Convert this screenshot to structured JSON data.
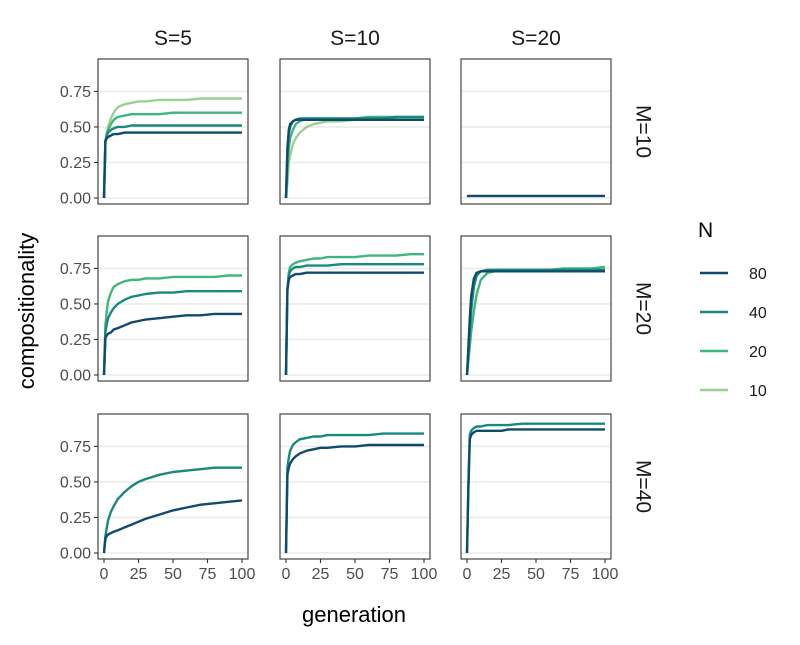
{
  "chart_data": {
    "type": "line",
    "layout": "facet_grid",
    "xlabel": "generation",
    "ylabel": "compositionality",
    "xlim": [
      0,
      100
    ],
    "ylim": [
      0,
      0.95
    ],
    "x_ticks": [
      "0",
      "25",
      "50",
      "75",
      "100"
    ],
    "y_ticks": [
      "0.00",
      "0.25",
      "0.50",
      "0.75"
    ],
    "grid": true,
    "column_labels": [
      "S=5",
      "S=10",
      "S=20"
    ],
    "row_labels": [
      "M=10",
      "M=20",
      "M=40"
    ],
    "legend": {
      "title": "N",
      "position": "right",
      "entries": [
        {
          "label": "80",
          "color": "#0f4c6b"
        },
        {
          "label": "40",
          "color": "#188a7c"
        },
        {
          "label": "20",
          "color": "#3fb57f"
        },
        {
          "label": "10",
          "color": "#97d28e"
        }
      ]
    },
    "x": [
      0,
      1,
      2,
      3,
      5,
      7,
      10,
      15,
      20,
      25,
      30,
      40,
      50,
      60,
      70,
      80,
      90,
      100
    ],
    "panels": [
      {
        "row": "M=10",
        "col": "S=5",
        "series": [
          {
            "N": "10",
            "values": [
              0.0,
              0.4,
              0.46,
              0.5,
              0.56,
              0.6,
              0.64,
              0.66,
              0.67,
              0.68,
              0.68,
              0.69,
              0.69,
              0.69,
              0.7,
              0.7,
              0.7,
              0.7
            ]
          },
          {
            "N": "20",
            "values": [
              0.0,
              0.4,
              0.45,
              0.48,
              0.52,
              0.55,
              0.57,
              0.58,
              0.59,
              0.59,
              0.59,
              0.59,
              0.6,
              0.6,
              0.6,
              0.6,
              0.6,
              0.6
            ]
          },
          {
            "N": "40",
            "values": [
              0.0,
              0.4,
              0.44,
              0.46,
              0.48,
              0.49,
              0.5,
              0.5,
              0.51,
              0.51,
              0.51,
              0.51,
              0.51,
              0.51,
              0.51,
              0.51,
              0.51,
              0.51
            ]
          },
          {
            "N": "80",
            "values": [
              0.0,
              0.4,
              0.42,
              0.43,
              0.44,
              0.45,
              0.45,
              0.46,
              0.46,
              0.46,
              0.46,
              0.46,
              0.46,
              0.46,
              0.46,
              0.46,
              0.46,
              0.46
            ]
          }
        ]
      },
      {
        "row": "M=10",
        "col": "S=10",
        "series": [
          {
            "N": "10",
            "values": [
              0.0,
              0.1,
              0.25,
              0.3,
              0.38,
              0.42,
              0.46,
              0.5,
              0.52,
              0.53,
              0.54,
              0.54,
              0.55,
              0.55,
              0.55,
              0.55,
              0.55,
              0.55
            ]
          },
          {
            "N": "20",
            "values": [
              0.0,
              0.2,
              0.35,
              0.42,
              0.48,
              0.52,
              0.54,
              0.56,
              0.56,
              0.56,
              0.56,
              0.56,
              0.56,
              0.57,
              0.57,
              0.57,
              0.57,
              0.57
            ]
          },
          {
            "N": "40",
            "values": [
              0.0,
              0.3,
              0.45,
              0.5,
              0.54,
              0.55,
              0.56,
              0.56,
              0.56,
              0.56,
              0.56,
              0.56,
              0.56,
              0.56,
              0.56,
              0.57,
              0.57,
              0.57
            ]
          },
          {
            "N": "80",
            "values": [
              0.0,
              0.35,
              0.48,
              0.52,
              0.54,
              0.55,
              0.55,
              0.55,
              0.55,
              0.55,
              0.55,
              0.55,
              0.55,
              0.55,
              0.55,
              0.55,
              0.55,
              0.55
            ]
          }
        ]
      },
      {
        "row": "M=10",
        "col": "S=20",
        "series": [
          {
            "N": "80",
            "values": [
              0.01,
              0.015,
              0.015,
              0.015,
              0.015,
              0.015,
              0.015,
              0.015,
              0.015,
              0.015,
              0.015,
              0.015,
              0.015,
              0.015,
              0.015,
              0.015,
              0.015,
              0.015
            ]
          }
        ]
      },
      {
        "row": "M=20",
        "col": "S=5",
        "series": [
          {
            "N": "20",
            "values": [
              0.0,
              0.35,
              0.45,
              0.52,
              0.58,
              0.62,
              0.64,
              0.66,
              0.67,
              0.67,
              0.68,
              0.68,
              0.69,
              0.69,
              0.69,
              0.69,
              0.7,
              0.7
            ]
          },
          {
            "N": "40",
            "values": [
              0.0,
              0.3,
              0.36,
              0.4,
              0.44,
              0.47,
              0.5,
              0.53,
              0.55,
              0.56,
              0.57,
              0.58,
              0.58,
              0.59,
              0.59,
              0.59,
              0.59,
              0.59
            ]
          },
          {
            "N": "80",
            "values": [
              0.0,
              0.26,
              0.28,
              0.29,
              0.3,
              0.32,
              0.33,
              0.35,
              0.37,
              0.38,
              0.39,
              0.4,
              0.41,
              0.42,
              0.42,
              0.43,
              0.43,
              0.43
            ]
          }
        ]
      },
      {
        "row": "M=20",
        "col": "S=10",
        "series": [
          {
            "N": "20",
            "values": [
              0.0,
              0.6,
              0.72,
              0.76,
              0.78,
              0.79,
              0.8,
              0.81,
              0.82,
              0.82,
              0.83,
              0.83,
              0.83,
              0.84,
              0.84,
              0.84,
              0.85,
              0.85
            ]
          },
          {
            "N": "40",
            "values": [
              0.0,
              0.6,
              0.7,
              0.73,
              0.75,
              0.76,
              0.76,
              0.77,
              0.77,
              0.77,
              0.77,
              0.78,
              0.78,
              0.78,
              0.78,
              0.78,
              0.78,
              0.78
            ]
          },
          {
            "N": "80",
            "values": [
              0.0,
              0.6,
              0.67,
              0.69,
              0.7,
              0.71,
              0.71,
              0.72,
              0.72,
              0.72,
              0.72,
              0.72,
              0.72,
              0.72,
              0.72,
              0.72,
              0.72,
              0.72
            ]
          }
        ]
      },
      {
        "row": "M=20",
        "col": "S=20",
        "series": [
          {
            "N": "20",
            "values": [
              0.0,
              0.1,
              0.2,
              0.3,
              0.45,
              0.57,
              0.67,
              0.72,
              0.73,
              0.74,
              0.74,
              0.74,
              0.74,
              0.74,
              0.75,
              0.75,
              0.75,
              0.76
            ]
          },
          {
            "N": "40",
            "values": [
              0.0,
              0.15,
              0.3,
              0.45,
              0.62,
              0.7,
              0.73,
              0.74,
              0.74,
              0.74,
              0.74,
              0.74,
              0.74,
              0.74,
              0.74,
              0.74,
              0.74,
              0.74
            ]
          },
          {
            "N": "80",
            "values": [
              0.0,
              0.2,
              0.4,
              0.55,
              0.68,
              0.72,
              0.73,
              0.73,
              0.73,
              0.73,
              0.73,
              0.73,
              0.73,
              0.73,
              0.73,
              0.73,
              0.73,
              0.73
            ]
          }
        ]
      },
      {
        "row": "M=40",
        "col": "S=5",
        "series": [
          {
            "N": "40",
            "values": [
              0.0,
              0.12,
              0.18,
              0.23,
              0.29,
              0.33,
              0.38,
              0.43,
              0.47,
              0.5,
              0.52,
              0.55,
              0.57,
              0.58,
              0.59,
              0.6,
              0.6,
              0.6
            ]
          },
          {
            "N": "80",
            "values": [
              0.0,
              0.1,
              0.12,
              0.13,
              0.14,
              0.15,
              0.16,
              0.18,
              0.2,
              0.22,
              0.24,
              0.27,
              0.3,
              0.32,
              0.34,
              0.35,
              0.36,
              0.37
            ]
          }
        ]
      },
      {
        "row": "M=40",
        "col": "S=10",
        "series": [
          {
            "N": "40",
            "values": [
              0.0,
              0.6,
              0.67,
              0.72,
              0.76,
              0.78,
              0.8,
              0.81,
              0.82,
              0.82,
              0.83,
              0.83,
              0.83,
              0.83,
              0.84,
              0.84,
              0.84,
              0.84
            ]
          },
          {
            "N": "80",
            "values": [
              0.0,
              0.55,
              0.6,
              0.63,
              0.66,
              0.68,
              0.7,
              0.72,
              0.73,
              0.74,
              0.74,
              0.75,
              0.75,
              0.76,
              0.76,
              0.76,
              0.76,
              0.76
            ]
          }
        ]
      },
      {
        "row": "M=40",
        "col": "S=20",
        "series": [
          {
            "N": "40",
            "values": [
              0.0,
              0.5,
              0.83,
              0.86,
              0.88,
              0.89,
              0.89,
              0.9,
              0.9,
              0.9,
              0.9,
              0.91,
              0.91,
              0.91,
              0.91,
              0.91,
              0.91,
              0.91
            ]
          },
          {
            "N": "80",
            "values": [
              0.0,
              0.45,
              0.8,
              0.83,
              0.85,
              0.86,
              0.86,
              0.86,
              0.86,
              0.86,
              0.87,
              0.87,
              0.87,
              0.87,
              0.87,
              0.87,
              0.87,
              0.87
            ]
          }
        ]
      }
    ]
  }
}
